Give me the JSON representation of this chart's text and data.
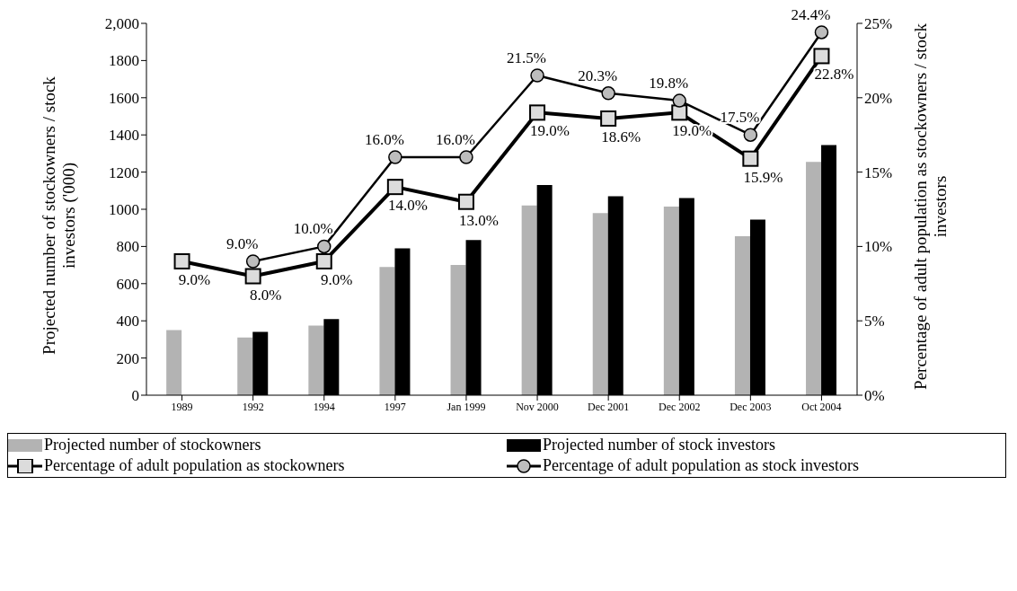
{
  "chart_data": {
    "type": "bar",
    "categories": [
      "1989",
      "1992",
      "1994",
      "1997",
      "Jan 1999",
      "Nov 2000",
      "Dec 2001",
      "Dec 2002",
      "Dec 2003",
      "Oct 2004"
    ],
    "ylabel": "Projected number of stockowners / stock investors ('000)",
    "y2label": "Percentage of adult population as stockowners / stock investors",
    "ylim": [
      0,
      2000
    ],
    "yticks": [
      0,
      200,
      400,
      600,
      800,
      1000,
      1200,
      1400,
      1600,
      1800,
      {
        "value": 2000,
        "label": "2,000"
      }
    ],
    "y2lim": [
      0,
      25
    ],
    "y2ticks": [
      {
        "value": 0,
        "label": "0%"
      },
      {
        "value": 5,
        "label": "5%"
      },
      {
        "value": 10,
        "label": "10%"
      },
      {
        "value": 15,
        "label": "15%"
      },
      {
        "value": 20,
        "label": "20%"
      },
      {
        "value": 25,
        "label": "25%"
      }
    ],
    "legend": "bottom",
    "series": [
      {
        "name": "Projected number of stockowners",
        "color": "#b3b3b3",
        "values": [
          350,
          310,
          375,
          690,
          700,
          1020,
          980,
          1015,
          855,
          1255
        ]
      },
      {
        "name": "Projected number of stock investors",
        "color": "#000000",
        "values": [
          null,
          340,
          410,
          790,
          835,
          1130,
          1070,
          1060,
          945,
          1345
        ]
      },
      {
        "name": "Percentage of adult population as stockowners",
        "type": "line",
        "axis": "y2",
        "marker": "square",
        "color": "#000000",
        "values": [
          9,
          8,
          9,
          14,
          13,
          19,
          18.6,
          19,
          15.9,
          22.8
        ],
        "value_labels": [
          "9.0%",
          "8.0%",
          "9.0%",
          "14.0%",
          "13.0%",
          "19.0%",
          "18.6%",
          "19.0%",
          "15.9%",
          "22.8%"
        ]
      },
      {
        "name": "Percentage of adult population as stock investors",
        "type": "line",
        "axis": "y2",
        "marker": "circle",
        "color": "#000000",
        "values": [
          null,
          9,
          10,
          16,
          16,
          21.5,
          20.3,
          19.8,
          17.5,
          24.4
        ],
        "value_labels": [
          null,
          "9.0%",
          "10.0%",
          "16.0%",
          "16.0%",
          "21.5%",
          "20.3%",
          "19.8%",
          "17.5%",
          "24.4%"
        ]
      }
    ]
  }
}
